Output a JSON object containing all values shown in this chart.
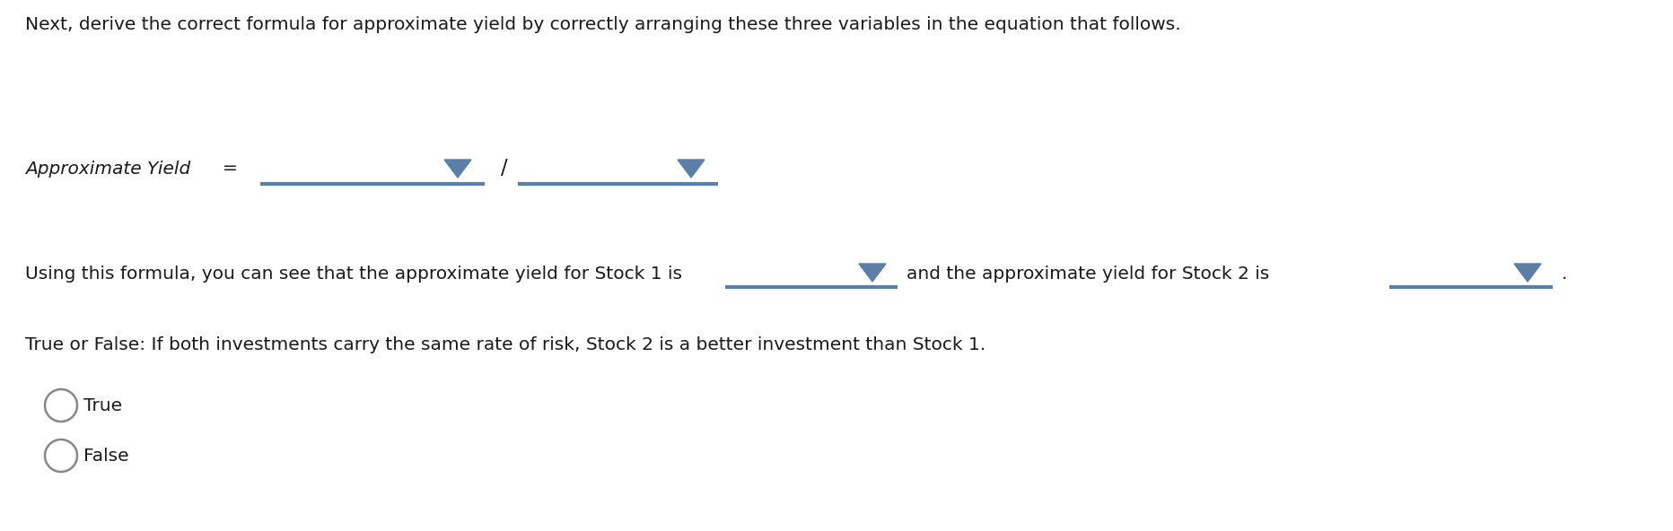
{
  "background_color": "#ffffff",
  "line1": "Next, derive the correct formula for approximate yield by correctly arranging these three variables in the equation that follows.",
  "approx_yield_label": "Approximate Yield",
  "equals": "=",
  "slash": "/",
  "line3_pre": "Using this formula, you can see that the approximate yield for Stock 1 is",
  "line3_mid": "and the approximate yield for Stock 2 is",
  "line3_end": ".",
  "line4": "True or False: If both investments carry the same rate of risk, Stock 2 is a better investment than Stock 1.",
  "true_label": "True",
  "false_label": "False",
  "dropdown_color": "#5b7fa6",
  "underline_color": "#5b7fa6",
  "text_color": "#1a1a1a",
  "radio_color": "#888888",
  "font_size_main": 14.5,
  "fig_width": 18.64,
  "fig_height": 5.92,
  "dpi": 100
}
